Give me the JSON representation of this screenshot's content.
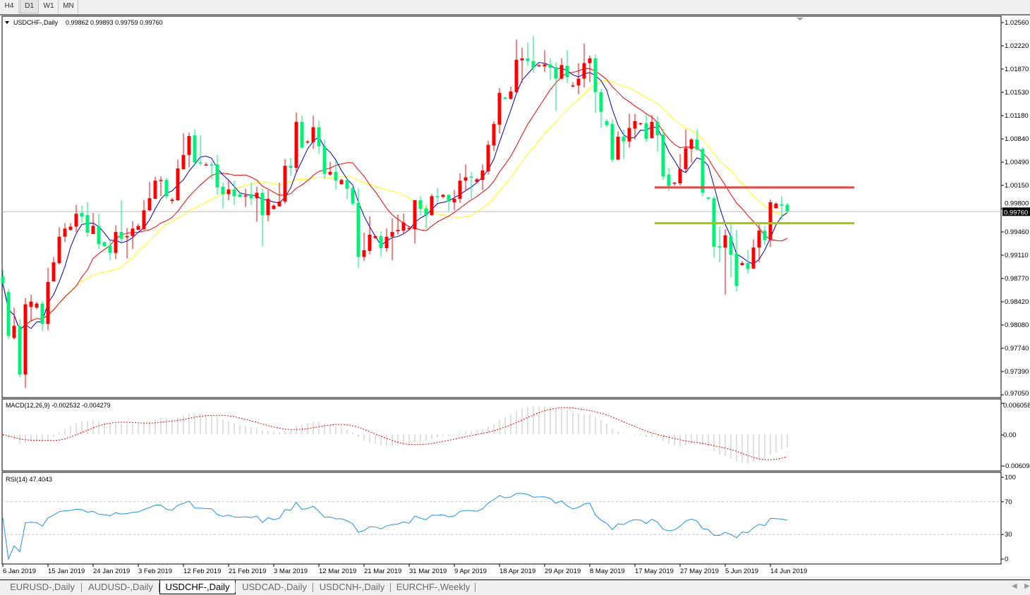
{
  "toolbar": {
    "timeframes": [
      "H4",
      "D1",
      "W1",
      "MN"
    ],
    "active": "D1"
  },
  "header": {
    "symbol": "USDCHF-,Daily",
    "ohlc": "0.99862 0.99893 0.99759 0.99760"
  },
  "tabs": [
    "EURUSD-,Daily",
    "AUDUSD-,Daily",
    "USDCHF-,Daily",
    "USDCAD-,Daily",
    "USDCNH-,Daily",
    "EURCHF-,Weekly"
  ],
  "active_tab": "USDCHF-,Daily",
  "chart_data": {
    "type": "candlestick",
    "title": "USDCHF-,Daily",
    "ylim": [
      0.9705,
      1.0256
    ],
    "current_price": "0.99760",
    "price_axis_labels": [
      "1.02560",
      "1.02220",
      "1.01870",
      "1.01530",
      "1.01180",
      "1.00840",
      "1.00490",
      "1.00150",
      "0.99800",
      "0.99460",
      "0.99110",
      "0.98770",
      "0.98420",
      "0.98080",
      "0.97740",
      "0.97390",
      "0.97050"
    ],
    "x_tick_labels": [
      "6 Jan 2019",
      "15 Jan 2019",
      "24 Jan 2019",
      "3 Feb 2019",
      "12 Feb 2019",
      "21 Feb 2019",
      "3 Mar 2019",
      "12 Mar 2019",
      "21 Mar 2019",
      "31 Mar 2019",
      "9 Apr 2019",
      "18 Apr 2019",
      "29 Apr 2019",
      "8 May 2019",
      "17 May 2019",
      "27 May 2019",
      "5 Jun 2019",
      "14 Jun 2019"
    ],
    "up_color": "#ff0000",
    "down_color": "#00f07a",
    "moving_average_colors": [
      "#0000cd",
      "#ff0000",
      "#ffff00"
    ],
    "horizontal_lines": [
      {
        "price": 1.0012,
        "color": "#f04040"
      },
      {
        "price": 0.9959,
        "color": "#99cc00"
      }
    ],
    "ohlc": [
      [
        0.988,
        0.989,
        0.9865,
        0.987
      ],
      [
        0.9857,
        0.9862,
        0.9787,
        0.9792
      ],
      [
        0.9789,
        0.9834,
        0.9787,
        0.9807
      ],
      [
        0.9807,
        0.9817,
        0.9731,
        0.9735
      ],
      [
        0.9735,
        0.9848,
        0.9715,
        0.9839
      ],
      [
        0.9835,
        0.9853,
        0.9814,
        0.9843
      ],
      [
        0.9834,
        0.9843,
        0.9832,
        0.984
      ],
      [
        0.984,
        0.9844,
        0.9799,
        0.981
      ],
      [
        0.981,
        0.9893,
        0.9801,
        0.9872
      ],
      [
        0.9873,
        0.9909,
        0.9873,
        0.9901
      ],
      [
        0.99,
        0.9953,
        0.9898,
        0.9939
      ],
      [
        0.9939,
        0.9959,
        0.9931,
        0.9951
      ],
      [
        0.9949,
        0.9959,
        0.9948,
        0.9954
      ],
      [
        0.9954,
        0.9986,
        0.9946,
        0.9973
      ],
      [
        0.9974,
        0.9985,
        0.996,
        0.9969
      ],
      [
        0.9971,
        0.999,
        0.9939,
        0.9945
      ],
      [
        0.9943,
        0.9974,
        0.9943,
        0.9955
      ],
      [
        0.9955,
        0.9973,
        0.9921,
        0.9928
      ],
      [
        0.9931,
        0.9932,
        0.9924,
        0.9925
      ],
      [
        0.9926,
        0.9932,
        0.9904,
        0.9915
      ],
      [
        0.9915,
        0.9956,
        0.9906,
        0.9946
      ],
      [
        0.9946,
        0.9993,
        0.9931,
        0.9936
      ],
      [
        0.9938,
        0.9952,
        0.9907,
        0.994
      ],
      [
        0.994,
        0.9962,
        0.9921,
        0.9951
      ],
      [
        0.9949,
        0.9958,
        0.9949,
        0.9955
      ],
      [
        0.995,
        0.9993,
        0.9949,
        0.9978
      ],
      [
        0.9978,
        1.002,
        0.9977,
        0.9996
      ],
      [
        0.9995,
        1.0028,
        0.9995,
        1.0022
      ],
      [
        1.0022,
        1.0028,
        0.9999,
        1.0023
      ],
      [
        1.0023,
        1.0026,
        0.9995,
        0.9999
      ],
      [
        0.9992,
        0.9997,
        0.9988,
        0.9994
      ],
      [
        0.9993,
        1.0053,
        0.9992,
        1.004
      ],
      [
        1.0039,
        1.0092,
        1.0038,
        1.006
      ],
      [
        1.006,
        1.0093,
        1.0042,
        1.0088
      ],
      [
        1.0089,
        1.0098,
        1.0044,
        1.0049
      ],
      [
        1.0049,
        1.0089,
        1.0044,
        1.0048
      ],
      [
        1.0046,
        1.0049,
        1.0044,
        1.0046
      ],
      [
        1.0046,
        1.005,
        1.0024,
        1.0045
      ],
      [
        1.0046,
        1.006,
        1.0001,
        1.0012
      ],
      [
        1.0013,
        1.002,
        0.9981,
        1.0002
      ],
      [
        1.0002,
        1.0022,
        0.9993,
        1.0009
      ],
      [
        1.0009,
        1.0022,
        0.9986,
        0.9999
      ],
      [
        1.0002,
        1.0004,
        0.9997,
        0.9998
      ],
      [
        0.9999,
        1.001,
        0.9983,
        1.0
      ],
      [
        1.0002,
        1.0019,
        0.9986,
        0.9996
      ],
      [
        0.9996,
        1.0013,
        0.9961,
        1.0004
      ],
      [
        1.0004,
        1.001,
        0.9925,
        0.9971
      ],
      [
        0.9971,
        1.0008,
        0.9962,
        0.9995
      ],
      [
        0.998,
        0.9987,
        0.9979,
        0.9985
      ],
      [
        0.9984,
        1.0019,
        0.9984,
        0.9991
      ],
      [
        0.9991,
        1.0054,
        0.9988,
        1.0044
      ],
      [
        1.0044,
        1.0056,
        1.0029,
        1.0041
      ],
      [
        1.0041,
        1.0123,
        1.0033,
        1.0109
      ],
      [
        1.0109,
        1.0118,
        1.0069,
        1.0071
      ],
      [
        1.0079,
        1.0082,
        1.0076,
        1.008
      ],
      [
        1.0079,
        1.0118,
        1.0069,
        1.0101
      ],
      [
        1.0101,
        1.0111,
        1.0062,
        1.0073
      ],
      [
        1.0073,
        1.0083,
        1.0025,
        1.0032
      ],
      [
        1.0031,
        1.005,
        1.0029,
        1.0035
      ],
      [
        1.0035,
        1.0051,
        1.0009,
        1.0022
      ],
      [
        1.0017,
        1.0025,
        1.0016,
        1.0023
      ],
      [
        1.0023,
        1.0025,
        0.9995,
        1.001
      ],
      [
        1.0011,
        1.0015,
        0.9985,
        0.9988
      ],
      [
        0.9989,
        1.0011,
        0.9893,
        0.9909
      ],
      [
        0.9909,
        0.9945,
        0.9903,
        0.9919
      ],
      [
        0.9918,
        0.9969,
        0.9913,
        0.9942
      ],
      [
        0.9937,
        0.9941,
        0.9936,
        0.994
      ],
      [
        0.994,
        0.9947,
        0.9909,
        0.9922
      ],
      [
        0.9922,
        0.9951,
        0.9917,
        0.9939
      ],
      [
        0.9939,
        0.9966,
        0.9904,
        0.9946
      ],
      [
        0.9947,
        0.9972,
        0.9942,
        0.9949
      ],
      [
        0.9948,
        0.9973,
        0.9943,
        0.996
      ],
      [
        0.995,
        0.9955,
        0.9949,
        0.9952
      ],
      [
        0.995,
        0.9993,
        0.9929,
        0.9993
      ],
      [
        0.9993,
        0.9999,
        0.9971,
        0.998
      ],
      [
        0.9981,
        0.9986,
        0.9951,
        0.9971
      ],
      [
        0.9971,
        1.0002,
        0.997,
        0.9999
      ],
      [
        0.9999,
        1.0011,
        0.999,
        0.9998
      ],
      [
        0.9998,
        1.0002,
        0.9996,
        1.0001
      ],
      [
        1.0001,
        1.0002,
        0.9977,
        0.9991
      ],
      [
        0.999,
        1.0008,
        0.9978,
        0.9995
      ],
      [
        0.9995,
        1.0033,
        0.9989,
        1.0022
      ],
      [
        1.0022,
        1.0046,
        1.0008,
        1.0027
      ],
      [
        1.0028,
        1.0035,
        0.9995,
        1.0027
      ],
      [
        1.002,
        1.0026,
        1.002,
        1.0024
      ],
      [
        1.0023,
        1.0046,
        1.0008,
        1.0037
      ],
      [
        1.0036,
        1.0081,
        1.0031,
        1.0075
      ],
      [
        1.0074,
        1.011,
        1.0066,
        1.0106
      ],
      [
        1.0105,
        1.0159,
        1.0092,
        1.0152
      ],
      [
        1.0145,
        1.0146,
        1.0142,
        1.0143
      ],
      [
        1.0143,
        1.0161,
        1.0142,
        1.0154
      ],
      [
        1.0153,
        1.0231,
        1.0153,
        1.0201
      ],
      [
        1.02,
        1.0219,
        1.0167,
        1.0203
      ],
      [
        1.0203,
        1.0227,
        1.0191,
        1.0199
      ],
      [
        1.0199,
        1.0236,
        1.0182,
        1.0189
      ],
      [
        1.0192,
        1.0194,
        1.019,
        1.0193
      ],
      [
        1.0191,
        1.0215,
        1.0183,
        1.0194
      ],
      [
        1.0194,
        1.0203,
        1.0171,
        1.0189
      ],
      [
        1.019,
        1.0197,
        1.0125,
        1.0173
      ],
      [
        1.0173,
        1.0203,
        1.0171,
        1.0193
      ],
      [
        1.0192,
        1.0215,
        1.0166,
        1.0175
      ],
      [
        1.0162,
        1.0168,
        1.016,
        1.0163
      ],
      [
        1.0163,
        1.0196,
        1.015,
        1.0173
      ],
      [
        1.0173,
        1.0225,
        1.016,
        1.0196
      ],
      [
        1.0196,
        1.0207,
        1.0168,
        1.0203
      ],
      [
        1.0203,
        1.0209,
        1.0122,
        1.0153
      ],
      [
        1.0153,
        1.0158,
        1.01,
        1.0124
      ],
      [
        1.011,
        1.0113,
        1.0101,
        1.0104
      ],
      [
        1.0106,
        1.0113,
        1.0049,
        1.0053
      ],
      [
        1.0053,
        1.0095,
        1.0053,
        1.0087
      ],
      [
        1.0087,
        1.0097,
        1.0054,
        1.008
      ],
      [
        1.008,
        1.0121,
        1.0071,
        1.01
      ],
      [
        1.0099,
        1.0121,
        1.0083,
        1.011
      ],
      [
        1.0106,
        1.0108,
        1.0104,
        1.0107
      ],
      [
        1.0107,
        1.012,
        1.0079,
        1.0084
      ],
      [
        1.0085,
        1.0119,
        1.0084,
        1.0109
      ],
      [
        1.0109,
        1.0117,
        1.0065,
        1.0089
      ],
      [
        1.009,
        1.0098,
        1.0023,
        1.0028
      ],
      [
        1.0031,
        1.0041,
        1.0007,
        1.0014
      ],
      [
        1.0018,
        1.002,
        1.0015,
        1.0019
      ],
      [
        1.0018,
        1.0061,
        1.0015,
        1.0039
      ],
      [
        1.0039,
        1.0098,
        1.0034,
        1.007
      ],
      [
        1.0069,
        1.0085,
        1.0049,
        1.0083
      ],
      [
        1.0083,
        1.0098,
        1.0067,
        1.0068
      ],
      [
        1.0069,
        1.0072,
        0.9999,
        1.0004
      ],
      [
        0.9997,
        0.9998,
        0.9993,
        0.9995
      ],
      [
        0.9996,
        0.9999,
        0.9908,
        0.9924
      ],
      [
        0.9925,
        0.9954,
        0.9901,
        0.9923
      ],
      [
        0.9923,
        0.995,
        0.9853,
        0.9941
      ],
      [
        0.994,
        0.9957,
        0.9879,
        0.9912
      ],
      [
        0.9914,
        0.9949,
        0.9858,
        0.9866
      ],
      [
        0.9897,
        0.9903,
        0.9896,
        0.99
      ],
      [
        0.99,
        0.9919,
        0.9884,
        0.9891
      ],
      [
        0.9892,
        0.9935,
        0.9891,
        0.9923
      ],
      [
        0.9923,
        0.9957,
        0.9901,
        0.9948
      ],
      [
        0.9948,
        0.9955,
        0.9926,
        0.9934
      ],
      [
        0.9935,
        0.9994,
        0.9924,
        0.999
      ],
      [
        0.9981,
        0.999,
        0.9981,
        0.9988
      ],
      [
        0.9987,
        0.9999,
        0.9964,
        0.9985
      ],
      [
        0.99862,
        0.99893,
        0.99759,
        0.9976
      ]
    ],
    "macd": {
      "label": "MACD(12,26,9) -0.002532 -0.004279",
      "axis_labels": [
        "0.006058",
        "0.00",
        "-0.006096"
      ],
      "ylim": [
        -0.006096,
        0.006058
      ],
      "histogram_color": "#c0c0c0",
      "signal_color": "#ff0000"
    },
    "rsi": {
      "label": "RSI(14) 47.4043",
      "axis_labels": [
        "100",
        "70",
        "30",
        "0"
      ],
      "levels": [
        70,
        30
      ],
      "ylim": [
        0,
        100
      ],
      "color": "#1e90ff"
    }
  }
}
